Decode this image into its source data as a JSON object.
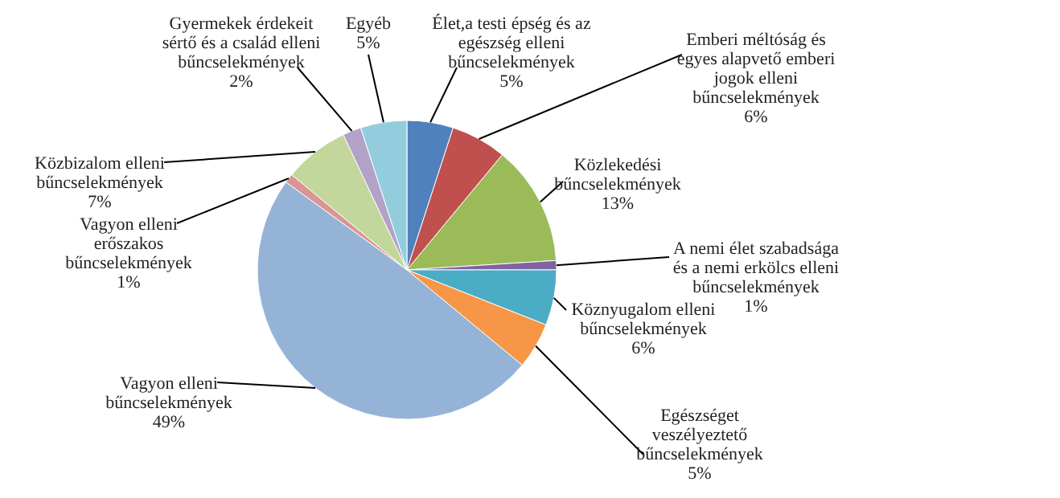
{
  "chart_data": {
    "type": "pie",
    "categories": [
      "Élet,a testi épség és az egészség elleni bűncselekmények",
      "Emberi méltóság és egyes alapvető emberi jogok elleni bűncselekmények",
      "Közlekedési bűncselekmények",
      "A nemi élet szabadsága és a nemi erkölcs elleni bűncselekmények",
      "Köznyugalom elleni bűncselekmények",
      "Egészséget veszélyeztető bűncselekmények",
      "Vagyon elleni bűncselekmények",
      "Vagyon elleni erőszakos bűncselekmények",
      "Közbizalom elleni bűncselekmények",
      "Gyermekek érdekeit sértő és a család elleni bűncselekmények",
      "Egyéb"
    ],
    "values": [
      5,
      6,
      13,
      1,
      6,
      5,
      49,
      1,
      7,
      2,
      5
    ],
    "colors": [
      "#4f81bd",
      "#c0504d",
      "#9bbb59",
      "#8064a2",
      "#4bacc6",
      "#f79646",
      "#95b3d7",
      "#d99694",
      "#c3d69b",
      "#b3a2c7",
      "#93cddd"
    ],
    "value_labels": [
      "5%",
      "6%",
      "13%",
      "1%",
      "6%",
      "5%",
      "49%",
      "1%",
      "7%",
      "2%",
      "5%"
    ]
  }
}
